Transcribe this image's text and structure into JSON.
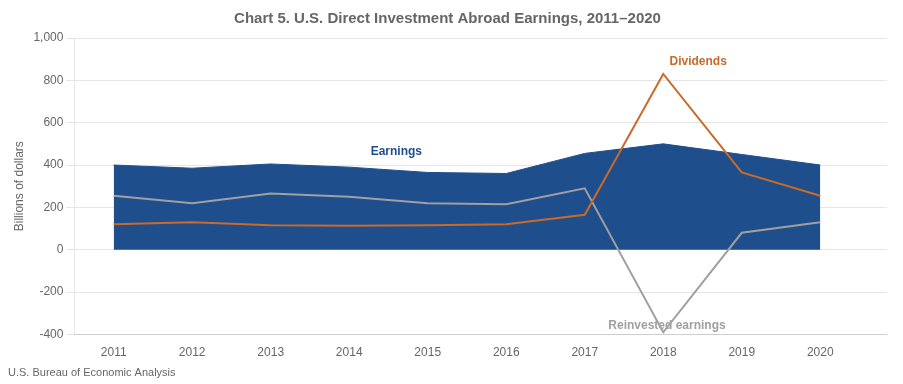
{
  "chart_data": {
    "type": "line",
    "title": "Chart 5. U.S. Direct Investment Abroad Earnings, 2011–2020",
    "ylabel": "Billions of dollars",
    "footnote": "U.S. Bureau of Economic Analysis",
    "x": [
      2011,
      2012,
      2013,
      2014,
      2015,
      2016,
      2017,
      2018,
      2019,
      2020
    ],
    "series": [
      {
        "name": "Earnings",
        "type": "area",
        "color": "#1f4e8c",
        "values": [
          400,
          385,
          405,
          390,
          365,
          360,
          455,
          500,
          450,
          400
        ]
      },
      {
        "name": "Dividends",
        "type": "line",
        "color": "#c96a28",
        "values": [
          120,
          130,
          115,
          113,
          115,
          120,
          165,
          830,
          365,
          255
        ]
      },
      {
        "name": "Reinvested earnings",
        "type": "line",
        "color": "#a0a0a0",
        "values": [
          255,
          220,
          265,
          250,
          220,
          215,
          290,
          -390,
          80,
          130
        ]
      }
    ],
    "xlim": [
      2010.5,
      2020.85
    ],
    "xticks": [
      2011,
      2012,
      2013,
      2014,
      2015,
      2016,
      2017,
      2018,
      2019,
      2020
    ],
    "ylim": [
      -400,
      1000
    ],
    "yticks": [
      -400,
      -200,
      0,
      200,
      400,
      600,
      800,
      {
        "value": 1000,
        "label": "1,000"
      }
    ],
    "grid": true,
    "annotations": [
      {
        "text": "Earnings",
        "x": 2014.6,
        "y": 420,
        "color": "#1f4e8c"
      },
      {
        "text": "Dividends",
        "x": 2018.08,
        "y": 845,
        "color": "#c96a28"
      },
      {
        "text": "Reinvested earnings",
        "x": 2017.3,
        "y": -318,
        "color": "#a0a0a0"
      }
    ]
  }
}
